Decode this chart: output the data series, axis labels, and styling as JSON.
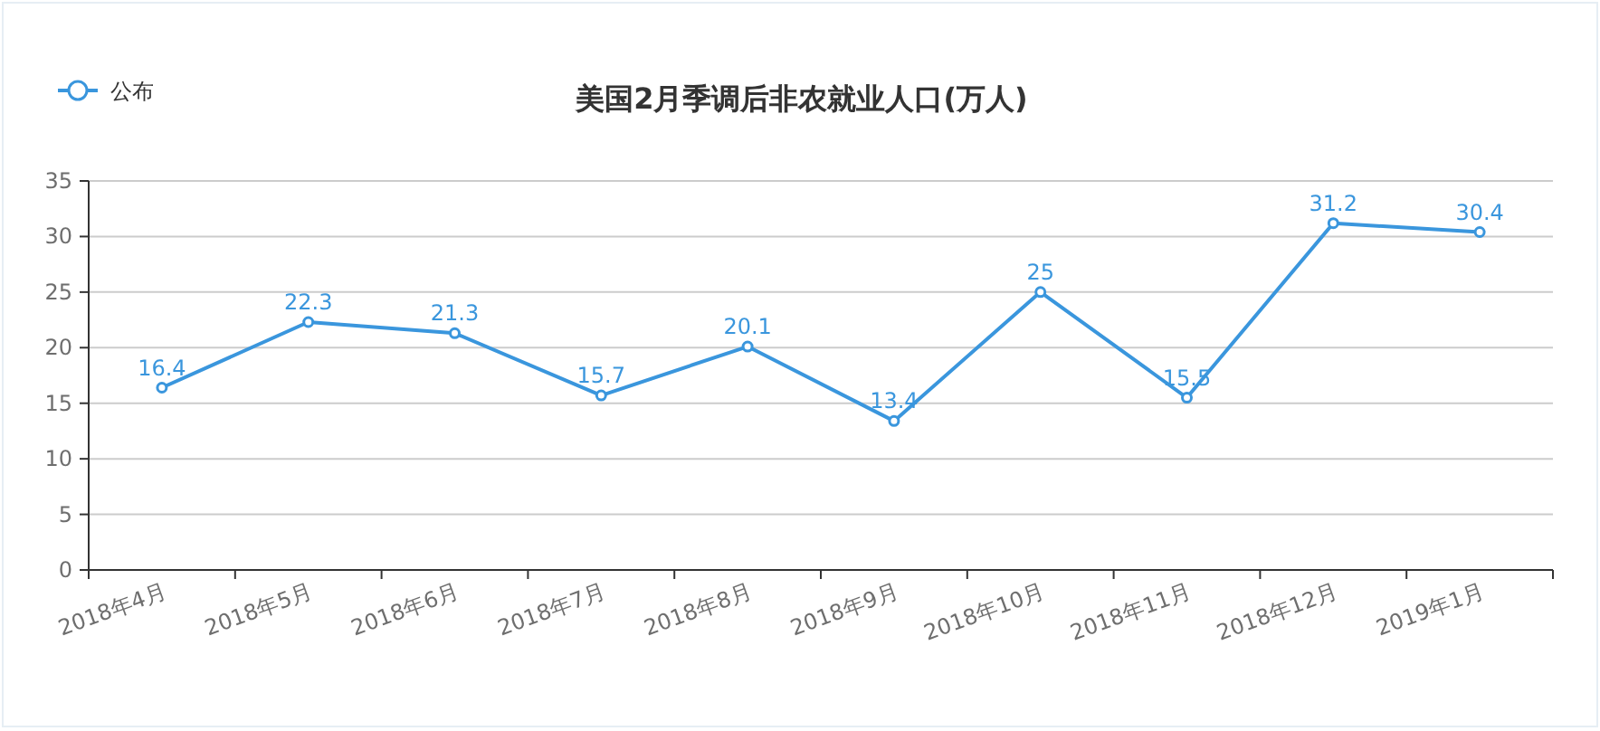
{
  "chart_data": {
    "type": "line",
    "title": "美国2月季调后非农就业人口(万人)",
    "categories": [
      "2018年4月",
      "2018年5月",
      "2018年6月",
      "2018年7月",
      "2018年8月",
      "2018年9月",
      "2018年10月",
      "2018年11月",
      "2018年12月",
      "2019年1月"
    ],
    "series": [
      {
        "name": "公布",
        "color": "#3a96dd",
        "values": [
          16.4,
          22.3,
          21.3,
          15.7,
          20.1,
          13.4,
          25,
          15.5,
          31.2,
          30.4
        ]
      }
    ],
    "ylim": [
      0,
      35
    ],
    "yticks": [
      0,
      5,
      10,
      15,
      20,
      25,
      30,
      35
    ],
    "grid": "y",
    "legend": "top left",
    "marker": "circle",
    "line_style": "solid",
    "data_labels": true
  }
}
